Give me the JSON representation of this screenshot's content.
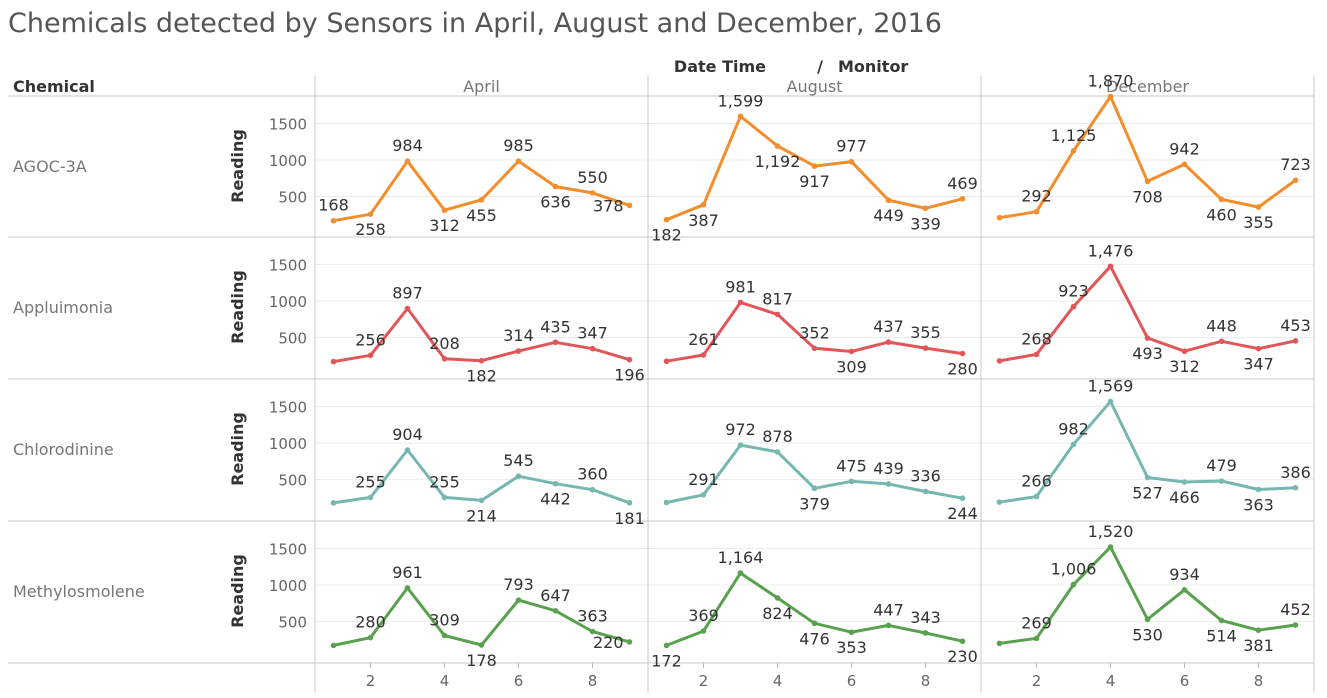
{
  "title": "Chemicals detected by Sensors in April, August and December, 2016",
  "header": {
    "row_header": "Chemical",
    "col_group_label": "Date Time",
    "col_group_sep": "/",
    "col_sub_label": "Monitor"
  },
  "chart_data": {
    "type": "line",
    "title": "Chemicals detected by Sensors in April, August and December, 2016",
    "ylabel": "Reading",
    "ylim": [
      0,
      1850
    ],
    "yticks": [
      500,
      1000,
      1500
    ],
    "xlim": [
      0.5,
      9.5
    ],
    "xticks": [
      2,
      4,
      6,
      8
    ],
    "x": [
      1,
      2,
      3,
      4,
      5,
      6,
      7,
      8,
      9
    ],
    "columns": [
      "April",
      "August",
      "December"
    ],
    "rows": [
      {
        "name": "AGOC-3A",
        "color": "#f28e2b",
        "values": [
          [
            168,
            258,
            984,
            312,
            455,
            985,
            636,
            550,
            378
          ],
          [
            182,
            387,
            1599,
            1192,
            917,
            977,
            449,
            339,
            469
          ],
          [
            210,
            292,
            1125,
            1870,
            708,
            942,
            460,
            355,
            723
          ]
        ]
      },
      {
        "name": "Appluimonia",
        "color": "#e15759",
        "values": [
          [
            170,
            256,
            897,
            208,
            182,
            314,
            435,
            347,
            196
          ],
          [
            175,
            261,
            981,
            817,
            352,
            309,
            437,
            355,
            280
          ],
          [
            180,
            268,
            923,
            1476,
            493,
            312,
            448,
            347,
            453
          ]
        ]
      },
      {
        "name": "Chlorodinine",
        "color": "#76b7b2",
        "values": [
          [
            180,
            255,
            904,
            255,
            214,
            545,
            442,
            360,
            181
          ],
          [
            185,
            291,
            972,
            878,
            379,
            475,
            439,
            336,
            244
          ],
          [
            190,
            266,
            982,
            1569,
            527,
            466,
            479,
            363,
            386
          ]
        ]
      },
      {
        "name": "Methylosmolene",
        "color": "#59a14f",
        "values": [
          [
            172,
            280,
            961,
            309,
            178,
            793,
            647,
            363,
            220
          ],
          [
            172,
            369,
            1164,
            824,
            476,
            353,
            447,
            343,
            230
          ],
          [
            200,
            269,
            1006,
            1520,
            530,
            934,
            514,
            381,
            452
          ]
        ]
      }
    ],
    "data_labels": [
      [
        [
          {
            "i": 0,
            "t": "168",
            "pos": "above"
          },
          {
            "i": 1,
            "t": "258",
            "pos": "below"
          },
          {
            "i": 2,
            "t": "984",
            "pos": "above"
          },
          {
            "i": 3,
            "t": "312",
            "pos": "below"
          },
          {
            "i": 4,
            "t": "455",
            "pos": "below"
          },
          {
            "i": 5,
            "t": "985",
            "pos": "above"
          },
          {
            "i": 6,
            "t": "636",
            "pos": "below"
          },
          {
            "i": 7,
            "t": "550",
            "pos": "above"
          },
          {
            "i": 8,
            "t": "378",
            "pos": "left"
          }
        ],
        [
          {
            "i": 0,
            "t": "182",
            "pos": "below"
          },
          {
            "i": 1,
            "t": "387",
            "pos": "below"
          },
          {
            "i": 2,
            "t": "1,599",
            "pos": "above"
          },
          {
            "i": 3,
            "t": "1,192",
            "pos": "below"
          },
          {
            "i": 4,
            "t": "917",
            "pos": "below"
          },
          {
            "i": 5,
            "t": "977",
            "pos": "above"
          },
          {
            "i": 6,
            "t": "449",
            "pos": "below"
          },
          {
            "i": 7,
            "t": "339",
            "pos": "below"
          },
          {
            "i": 8,
            "t": "469",
            "pos": "above"
          }
        ],
        [
          {
            "i": 1,
            "t": "292",
            "pos": "above"
          },
          {
            "i": 2,
            "t": "1,125",
            "pos": "above"
          },
          {
            "i": 3,
            "t": "1,870",
            "pos": "above"
          },
          {
            "i": 4,
            "t": "708",
            "pos": "below"
          },
          {
            "i": 5,
            "t": "942",
            "pos": "above"
          },
          {
            "i": 6,
            "t": "460",
            "pos": "below"
          },
          {
            "i": 7,
            "t": "355",
            "pos": "below"
          },
          {
            "i": 8,
            "t": "723",
            "pos": "above"
          }
        ]
      ],
      [
        [
          {
            "i": 1,
            "t": "256",
            "pos": "above"
          },
          {
            "i": 2,
            "t": "897",
            "pos": "above"
          },
          {
            "i": 3,
            "t": "208",
            "pos": "above"
          },
          {
            "i": 4,
            "t": "182",
            "pos": "below"
          },
          {
            "i": 5,
            "t": "314",
            "pos": "above"
          },
          {
            "i": 6,
            "t": "435",
            "pos": "above"
          },
          {
            "i": 7,
            "t": "347",
            "pos": "above"
          },
          {
            "i": 8,
            "t": "196",
            "pos": "below"
          }
        ],
        [
          {
            "i": 1,
            "t": "261",
            "pos": "above"
          },
          {
            "i": 2,
            "t": "981",
            "pos": "above"
          },
          {
            "i": 3,
            "t": "817",
            "pos": "above"
          },
          {
            "i": 4,
            "t": "352",
            "pos": "above"
          },
          {
            "i": 5,
            "t": "309",
            "pos": "below"
          },
          {
            "i": 6,
            "t": "437",
            "pos": "above"
          },
          {
            "i": 7,
            "t": "355",
            "pos": "above"
          },
          {
            "i": 8,
            "t": "280",
            "pos": "below"
          }
        ],
        [
          {
            "i": 1,
            "t": "268",
            "pos": "above"
          },
          {
            "i": 2,
            "t": "923",
            "pos": "above"
          },
          {
            "i": 3,
            "t": "1,476",
            "pos": "above"
          },
          {
            "i": 4,
            "t": "493",
            "pos": "below"
          },
          {
            "i": 5,
            "t": "312",
            "pos": "below"
          },
          {
            "i": 6,
            "t": "448",
            "pos": "above"
          },
          {
            "i": 7,
            "t": "347",
            "pos": "below"
          },
          {
            "i": 8,
            "t": "453",
            "pos": "above"
          }
        ]
      ],
      [
        [
          {
            "i": 1,
            "t": "255",
            "pos": "above"
          },
          {
            "i": 2,
            "t": "904",
            "pos": "above"
          },
          {
            "i": 3,
            "t": "255",
            "pos": "above"
          },
          {
            "i": 4,
            "t": "214",
            "pos": "below"
          },
          {
            "i": 5,
            "t": "545",
            "pos": "above"
          },
          {
            "i": 6,
            "t": "442",
            "pos": "below"
          },
          {
            "i": 7,
            "t": "360",
            "pos": "above"
          },
          {
            "i": 8,
            "t": "181",
            "pos": "below"
          }
        ],
        [
          {
            "i": 1,
            "t": "291",
            "pos": "above"
          },
          {
            "i": 2,
            "t": "972",
            "pos": "above"
          },
          {
            "i": 3,
            "t": "878",
            "pos": "above"
          },
          {
            "i": 4,
            "t": "379",
            "pos": "below"
          },
          {
            "i": 5,
            "t": "475",
            "pos": "above"
          },
          {
            "i": 6,
            "t": "439",
            "pos": "above"
          },
          {
            "i": 7,
            "t": "336",
            "pos": "above"
          },
          {
            "i": 8,
            "t": "244",
            "pos": "below"
          }
        ],
        [
          {
            "i": 1,
            "t": "266",
            "pos": "above"
          },
          {
            "i": 2,
            "t": "982",
            "pos": "above"
          },
          {
            "i": 3,
            "t": "1,569",
            "pos": "above"
          },
          {
            "i": 4,
            "t": "527",
            "pos": "below"
          },
          {
            "i": 5,
            "t": "466",
            "pos": "below"
          },
          {
            "i": 6,
            "t": "479",
            "pos": "above"
          },
          {
            "i": 7,
            "t": "363",
            "pos": "below"
          },
          {
            "i": 8,
            "t": "386",
            "pos": "above"
          }
        ]
      ],
      [
        [
          {
            "i": 1,
            "t": "280",
            "pos": "above"
          },
          {
            "i": 2,
            "t": "961",
            "pos": "above"
          },
          {
            "i": 3,
            "t": "309",
            "pos": "above"
          },
          {
            "i": 4,
            "t": "178",
            "pos": "below"
          },
          {
            "i": 5,
            "t": "793",
            "pos": "above"
          },
          {
            "i": 6,
            "t": "647",
            "pos": "above"
          },
          {
            "i": 7,
            "t": "363",
            "pos": "above"
          },
          {
            "i": 8,
            "t": "220",
            "pos": "left"
          }
        ],
        [
          {
            "i": 0,
            "t": "172",
            "pos": "below"
          },
          {
            "i": 1,
            "t": "369",
            "pos": "above"
          },
          {
            "i": 2,
            "t": "1,164",
            "pos": "above"
          },
          {
            "i": 3,
            "t": "824",
            "pos": "below"
          },
          {
            "i": 4,
            "t": "476",
            "pos": "below"
          },
          {
            "i": 5,
            "t": "353",
            "pos": "below"
          },
          {
            "i": 6,
            "t": "447",
            "pos": "above"
          },
          {
            "i": 7,
            "t": "343",
            "pos": "above"
          },
          {
            "i": 8,
            "t": "230",
            "pos": "below"
          }
        ],
        [
          {
            "i": 1,
            "t": "269",
            "pos": "above"
          },
          {
            "i": 2,
            "t": "1,006",
            "pos": "above"
          },
          {
            "i": 3,
            "t": "1,520",
            "pos": "above"
          },
          {
            "i": 4,
            "t": "530",
            "pos": "below"
          },
          {
            "i": 5,
            "t": "934",
            "pos": "above"
          },
          {
            "i": 6,
            "t": "514",
            "pos": "below"
          },
          {
            "i": 7,
            "t": "381",
            "pos": "below"
          },
          {
            "i": 8,
            "t": "452",
            "pos": "above"
          }
        ]
      ]
    ]
  }
}
